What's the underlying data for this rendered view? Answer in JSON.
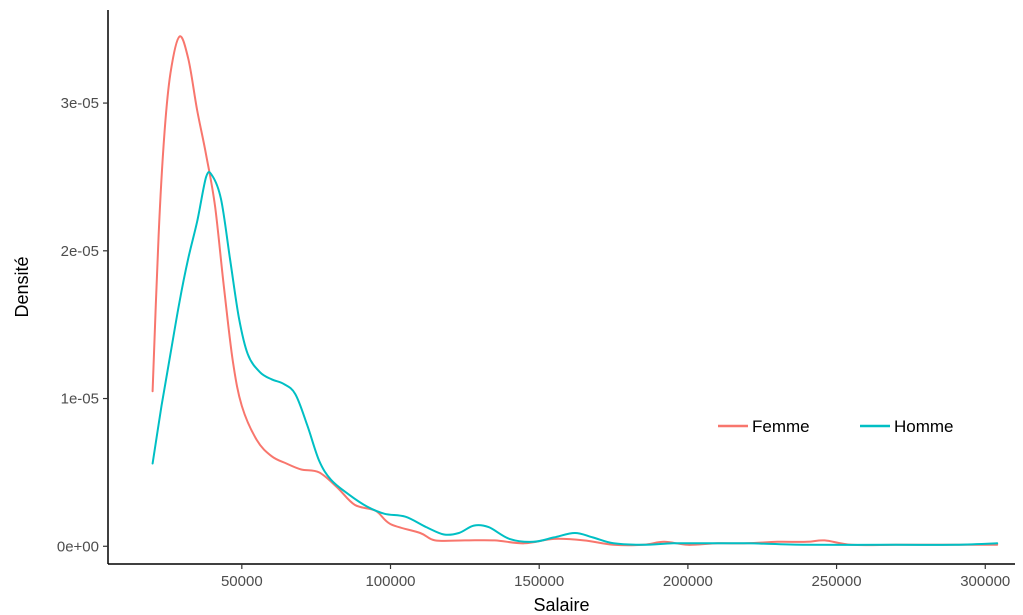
{
  "chart_data": {
    "type": "line",
    "title": "",
    "xlabel": "Salaire",
    "ylabel": "Densité",
    "xlim": [
      5000,
      310000
    ],
    "ylim": [
      -1.2e-06,
      3.63e-05
    ],
    "x_ticks": [
      50000,
      100000,
      150000,
      200000,
      250000,
      300000
    ],
    "x_tick_labels": [
      "50000",
      "100000",
      "150000",
      "200000",
      "250000",
      "300000"
    ],
    "y_ticks": [
      0,
      1e-05,
      2e-05,
      3e-05
    ],
    "y_tick_labels": [
      "0e+00",
      "1e-05",
      "2e-05",
      "3e-05"
    ],
    "grid": false,
    "legend_position": "right",
    "series": [
      {
        "name": "Femme",
        "color": "#F8766D",
        "points": [
          [
            20000,
            1.05e-05
          ],
          [
            22000,
            2.1e-05
          ],
          [
            24000,
            2.8e-05
          ],
          [
            26000,
            3.2e-05
          ],
          [
            29000,
            3.45e-05
          ],
          [
            32000,
            3.3e-05
          ],
          [
            35000,
            2.95e-05
          ],
          [
            38000,
            2.65e-05
          ],
          [
            41000,
            2.3e-05
          ],
          [
            44000,
            1.75e-05
          ],
          [
            47000,
            1.25e-05
          ],
          [
            50000,
            9.5e-06
          ],
          [
            55000,
            7.2e-06
          ],
          [
            60000,
            6.1e-06
          ],
          [
            65000,
            5.6e-06
          ],
          [
            70000,
            5.2e-06
          ],
          [
            76000,
            5e-06
          ],
          [
            82000,
            4e-06
          ],
          [
            88000,
            2.8e-06
          ],
          [
            95000,
            2.4e-06
          ],
          [
            100000,
            1.5e-06
          ],
          [
            110000,
            9e-07
          ],
          [
            115000,
            4e-07
          ],
          [
            125000,
            4e-07
          ],
          [
            135000,
            4e-07
          ],
          [
            145000,
            2e-07
          ],
          [
            155000,
            5e-07
          ],
          [
            165000,
            4e-07
          ],
          [
            175000,
            1e-07
          ],
          [
            185000,
            1e-07
          ],
          [
            192000,
            3e-07
          ],
          [
            200000,
            1e-07
          ],
          [
            210000,
            2e-07
          ],
          [
            220000,
            2e-07
          ],
          [
            230000,
            3e-07
          ],
          [
            240000,
            3e-07
          ],
          [
            246000,
            4e-07
          ],
          [
            255000,
            1e-07
          ],
          [
            270000,
            1e-07
          ],
          [
            285000,
            1e-07
          ],
          [
            304000,
            1e-07
          ]
        ]
      },
      {
        "name": "Homme",
        "color": "#00BFC4",
        "points": [
          [
            20000,
            5.6e-06
          ],
          [
            23000,
            9.5e-06
          ],
          [
            26000,
            1.3e-05
          ],
          [
            29000,
            1.65e-05
          ],
          [
            32000,
            1.95e-05
          ],
          [
            35000,
            2.2e-05
          ],
          [
            38000,
            2.5e-05
          ],
          [
            40000,
            2.51e-05
          ],
          [
            43000,
            2.35e-05
          ],
          [
            46000,
            1.95e-05
          ],
          [
            49000,
            1.55e-05
          ],
          [
            52000,
            1.3e-05
          ],
          [
            56000,
            1.18e-05
          ],
          [
            60000,
            1.13e-05
          ],
          [
            64000,
            1.1e-05
          ],
          [
            68000,
            1.03e-05
          ],
          [
            72000,
            8.2e-06
          ],
          [
            76000,
            5.8e-06
          ],
          [
            80000,
            4.5e-06
          ],
          [
            86000,
            3.5e-06
          ],
          [
            92000,
            2.7e-06
          ],
          [
            98000,
            2.2e-06
          ],
          [
            105000,
            2e-06
          ],
          [
            112000,
            1.3e-06
          ],
          [
            118000,
            8e-07
          ],
          [
            123000,
            9e-07
          ],
          [
            128000,
            1.4e-06
          ],
          [
            133000,
            1.3e-06
          ],
          [
            140000,
            5e-07
          ],
          [
            148000,
            3e-07
          ],
          [
            155000,
            6e-07
          ],
          [
            162000,
            9e-07
          ],
          [
            168000,
            6e-07
          ],
          [
            175000,
            2e-07
          ],
          [
            185000,
            1e-07
          ],
          [
            195000,
            2e-07
          ],
          [
            205000,
            2e-07
          ],
          [
            220000,
            2e-07
          ],
          [
            240000,
            1e-07
          ],
          [
            270000,
            1e-07
          ],
          [
            290000,
            1e-07
          ],
          [
            304000,
            2e-07
          ]
        ]
      }
    ]
  }
}
